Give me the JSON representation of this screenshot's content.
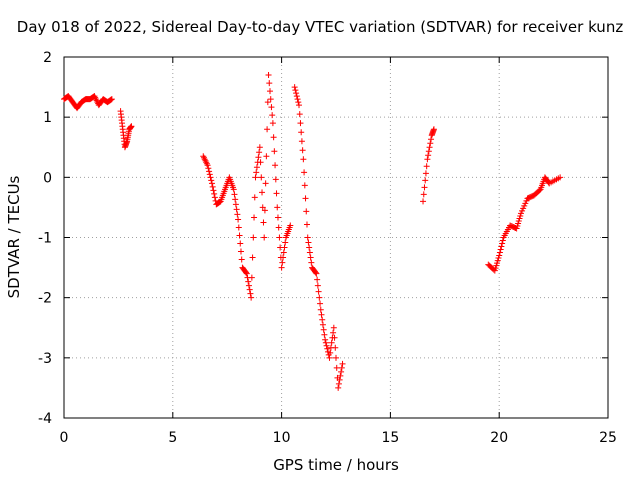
{
  "chart_data": {
    "type": "scatter",
    "title": "Day 018 of 2022, Sidereal Day-to-day VTEC variation (SDTVAR) for receiver kunz",
    "xlabel": "GPS time / hours",
    "ylabel": "SDTVAR / TECUs",
    "xlim": [
      0,
      25
    ],
    "ylim": [
      -4,
      2
    ],
    "x_ticks": [
      0,
      5,
      10,
      15,
      20,
      25
    ],
    "y_ticks": [
      -4,
      -3,
      -2,
      -1,
      0,
      1,
      2
    ],
    "x_tick_labels": [
      "0",
      "5",
      "10",
      "15",
      "20",
      "25"
    ],
    "y_tick_labels": [
      "-4",
      "-3",
      "-2",
      "-1",
      "0",
      "1",
      "2"
    ],
    "grid": true,
    "marker": "plus",
    "color": "#ff0000",
    "series": [
      {
        "name": "SDTVAR",
        "segments": [
          [
            [
              0.0,
              1.3
            ],
            [
              0.2,
              1.35
            ],
            [
              0.4,
              1.25
            ],
            [
              0.6,
              1.15
            ],
            [
              0.8,
              1.25
            ],
            [
              1.0,
              1.3
            ],
            [
              1.2,
              1.3
            ],
            [
              1.4,
              1.35
            ],
            [
              1.6,
              1.2
            ],
            [
              1.8,
              1.3
            ],
            [
              2.0,
              1.25
            ],
            [
              2.2,
              1.3
            ]
          ],
          [
            [
              2.6,
              1.1
            ],
            [
              2.7,
              0.8
            ],
            [
              2.8,
              0.5
            ],
            [
              2.9,
              0.6
            ],
            [
              3.0,
              0.8
            ],
            [
              3.1,
              0.85
            ]
          ],
          [
            [
              6.4,
              0.35
            ],
            [
              6.6,
              0.2
            ],
            [
              6.8,
              -0.1
            ],
            [
              7.0,
              -0.45
            ],
            [
              7.2,
              -0.4
            ],
            [
              7.4,
              -0.2
            ],
            [
              7.6,
              0.0
            ],
            [
              7.8,
              -0.2
            ],
            [
              8.0,
              -0.7
            ],
            [
              8.2,
              -1.5
            ],
            [
              8.4,
              -1.6
            ],
            [
              8.6,
              -2.0
            ],
            [
              8.8,
              0.0
            ],
            [
              9.0,
              0.5
            ],
            [
              9.2,
              -1.0
            ],
            [
              9.4,
              1.7
            ],
            [
              9.6,
              0.9
            ],
            [
              9.8,
              -0.5
            ],
            [
              10.0,
              -1.5
            ],
            [
              10.2,
              -1.0
            ],
            [
              10.4,
              -0.8
            ]
          ],
          [
            [
              10.6,
              1.5
            ],
            [
              10.8,
              1.2
            ],
            [
              11.0,
              0.3
            ],
            [
              11.2,
              -1.0
            ],
            [
              11.4,
              -1.5
            ],
            [
              11.6,
              -1.6
            ],
            [
              11.8,
              -2.2
            ],
            [
              12.0,
              -2.7
            ],
            [
              12.2,
              -3.0
            ],
            [
              12.4,
              -2.5
            ],
            [
              12.6,
              -3.5
            ],
            [
              12.8,
              -3.1
            ]
          ],
          [
            [
              16.5,
              -0.4
            ],
            [
              16.7,
              0.3
            ],
            [
              16.9,
              0.7
            ],
            [
              17.0,
              0.8
            ]
          ],
          [
            [
              19.5,
              -1.45
            ],
            [
              19.8,
              -1.55
            ],
            [
              20.0,
              -1.3
            ],
            [
              20.2,
              -1.0
            ],
            [
              20.5,
              -0.8
            ],
            [
              20.8,
              -0.85
            ],
            [
              21.0,
              -0.6
            ],
            [
              21.3,
              -0.35
            ],
            [
              21.6,
              -0.3
            ],
            [
              21.9,
              -0.2
            ],
            [
              22.1,
              0.0
            ],
            [
              22.3,
              -0.1
            ],
            [
              22.8,
              0.0
            ]
          ]
        ]
      }
    ]
  }
}
